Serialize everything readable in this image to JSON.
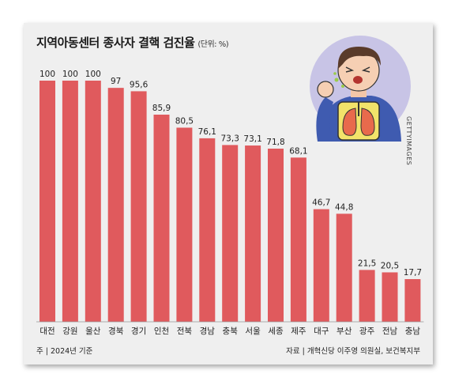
{
  "header": {
    "title": "지역아동센터 종사자 결핵 검진율",
    "unit": "(단위: %)"
  },
  "notes": {
    "base_year": "주 | 2024년 기준",
    "source": "자료 | 개혁신당 이주영 의원실, 보건복지부"
  },
  "image_credit": "GETTYIMAGES",
  "colors": {
    "bar": "#e05a5d",
    "background": "#efefef",
    "illustration_circle": "#c8c4e6"
  },
  "chart_data": {
    "type": "bar",
    "title": "지역아동센터 종사자 결핵 검진율",
    "unit": "%",
    "categories": [
      "대전",
      "강원",
      "울산",
      "경북",
      "경기",
      "인천",
      "전북",
      "경남",
      "충북",
      "서울",
      "세종",
      "제주",
      "대구",
      "부산",
      "광주",
      "전남",
      "충남"
    ],
    "values": [
      100,
      100,
      100,
      97,
      95.6,
      85.9,
      80.5,
      76.1,
      73.3,
      73.1,
      71.8,
      68.1,
      46.7,
      44.8,
      21.5,
      20.5,
      17.7
    ],
    "value_labels": [
      "100",
      "100",
      "100",
      "97",
      "95,6",
      "85,9",
      "80,5",
      "76,1",
      "73,3",
      "73,1",
      "71,8",
      "68,1",
      "46,7",
      "44,8",
      "21,5",
      "20,5",
      "17,7"
    ],
    "ylim": [
      0,
      100
    ],
    "grid": false,
    "legend": "none"
  }
}
